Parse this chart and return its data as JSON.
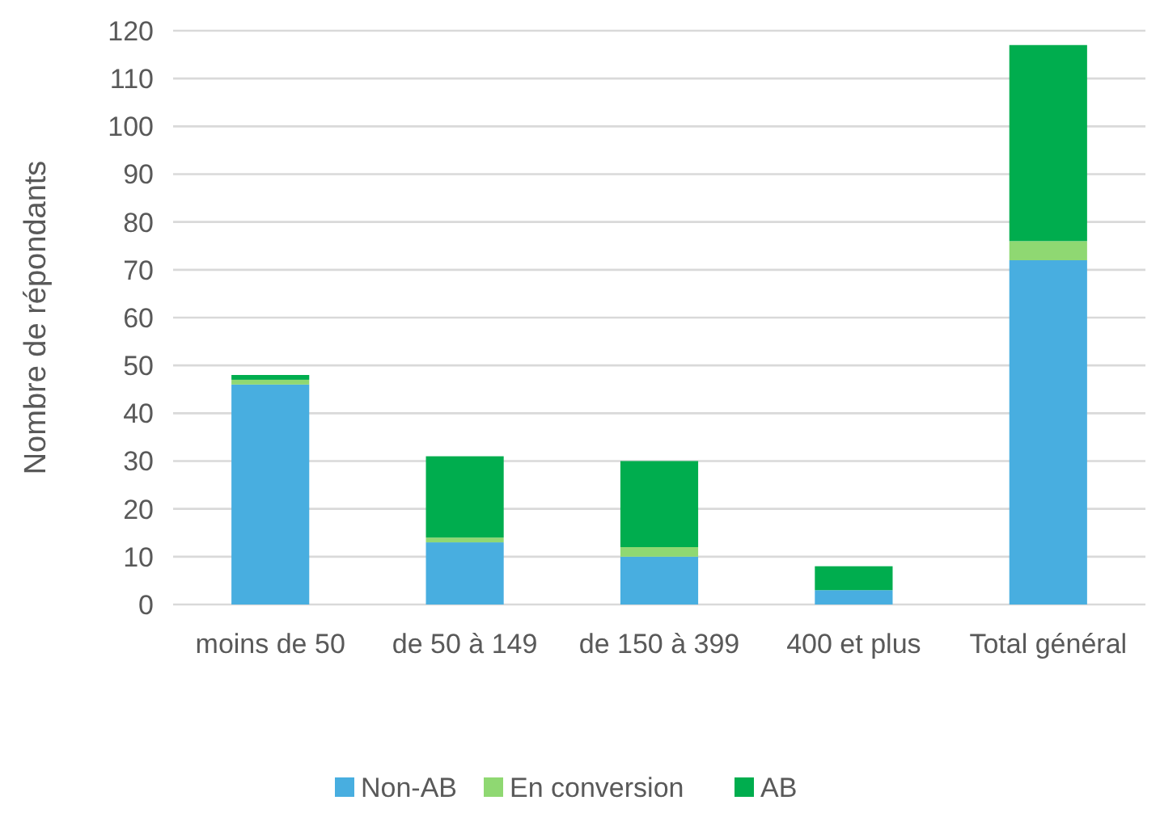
{
  "chart_data": {
    "type": "bar",
    "ylabel": "Nombre de répondants",
    "categories": [
      "moins de 50",
      "de 50 à 149",
      "de 150 à 399",
      "400 et plus",
      "Total général"
    ],
    "stacked": true,
    "series": [
      {
        "name": "Non-AB",
        "color": "#48aee0",
        "values": [
          46,
          13,
          10,
          3,
          72
        ]
      },
      {
        "name": "En conversion",
        "color": "#8fd872",
        "values": [
          1,
          1,
          2,
          0,
          4
        ]
      },
      {
        "name": "AB",
        "color": "#00ad4e",
        "values": [
          1,
          17,
          18,
          5,
          41
        ]
      }
    ],
    "ylim": [
      0,
      120
    ],
    "yticks": [
      0,
      10,
      20,
      30,
      40,
      50,
      60,
      70,
      80,
      90,
      100,
      110,
      120
    ],
    "grid": "y",
    "legend": "bottom"
  }
}
